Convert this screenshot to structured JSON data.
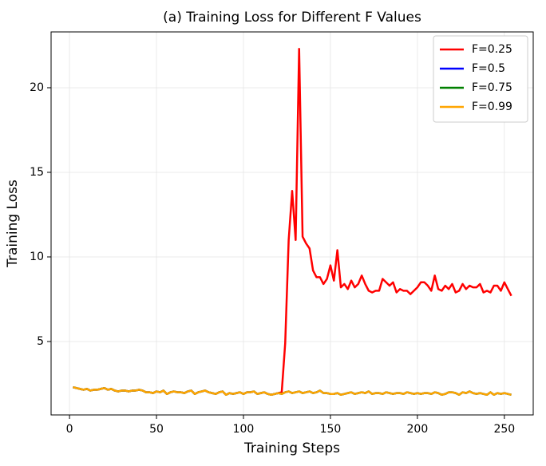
{
  "chart_data": {
    "type": "line",
    "title": "(a) Training Loss for Different F Values",
    "x_label": "Training Steps",
    "y_label": "Training Loss",
    "xlim": [
      -10.6,
      266.6
    ],
    "ylim": [
      0.66,
      23.3
    ],
    "xticks": [
      0,
      50,
      100,
      150,
      200,
      250
    ],
    "yticks": [
      5,
      10,
      15,
      20
    ],
    "grid": true,
    "legend": "upper right",
    "x": [
      2,
      4,
      6,
      8,
      10,
      12,
      14,
      16,
      18,
      20,
      22,
      24,
      26,
      28,
      30,
      32,
      34,
      36,
      38,
      40,
      42,
      44,
      46,
      48,
      50,
      52,
      54,
      56,
      58,
      60,
      62,
      64,
      66,
      68,
      70,
      72,
      74,
      76,
      78,
      80,
      82,
      84,
      86,
      88,
      90,
      92,
      94,
      96,
      98,
      100,
      102,
      104,
      106,
      108,
      110,
      112,
      114,
      116,
      118,
      120,
      122,
      124,
      126,
      128,
      130,
      132,
      134,
      136,
      138,
      140,
      142,
      144,
      146,
      148,
      150,
      152,
      154,
      156,
      158,
      160,
      162,
      164,
      166,
      168,
      170,
      172,
      174,
      176,
      178,
      180,
      182,
      184,
      186,
      188,
      190,
      192,
      194,
      196,
      198,
      200,
      202,
      204,
      206,
      208,
      210,
      212,
      214,
      216,
      218,
      220,
      222,
      224,
      226,
      228,
      230,
      232,
      234,
      236,
      238,
      240,
      242,
      244,
      246,
      248,
      250,
      252,
      254
    ],
    "series": [
      {
        "name": "F=0.25",
        "color": "#ff0000",
        "values": [
          2.3,
          2.25,
          2.2,
          2.15,
          2.2,
          2.1,
          2.15,
          2.15,
          2.2,
          2.25,
          2.15,
          2.2,
          2.1,
          2.05,
          2.1,
          2.1,
          2.05,
          2.1,
          2.1,
          2.15,
          2.1,
          2.0,
          2.0,
          1.95,
          2.05,
          2.0,
          2.1,
          1.9,
          2.0,
          2.05,
          2.0,
          2.0,
          1.95,
          2.05,
          2.1,
          1.9,
          2.0,
          2.05,
          2.1,
          2.0,
          1.95,
          1.9,
          2.0,
          2.05,
          1.85,
          1.95,
          1.9,
          1.95,
          2.0,
          1.9,
          2.0,
          2.0,
          2.05,
          1.9,
          1.95,
          2.0,
          1.9,
          1.85,
          1.9,
          1.95,
          2.0,
          4.9,
          11,
          13.9,
          11,
          22.3,
          11.2,
          10.8,
          10.5,
          9.2,
          8.8,
          8.8,
          8.4,
          8.7,
          9.5,
          8.6,
          10.4,
          8.2,
          8.4,
          8.1,
          8.6,
          8.2,
          8.4,
          8.9,
          8.4,
          8.0,
          7.9,
          8.0,
          8.0,
          8.7,
          8.5,
          8.3,
          8.5,
          7.9,
          8.1,
          8.0,
          8.0,
          7.8,
          8.0,
          8.2,
          8.5,
          8.5,
          8.3,
          8.0,
          8.9,
          8.1,
          8.0,
          8.3,
          8.1,
          8.4,
          7.9,
          8.0,
          8.4,
          8.1,
          8.3,
          8.2,
          8.2,
          8.4,
          7.9,
          8.0,
          7.9,
          8.3,
          8.3,
          8.0,
          8.5,
          8.1,
          7.7
        ]
      },
      {
        "name": "F=0.5",
        "color": "#0000ff",
        "values": [
          2.3,
          2.25,
          2.2,
          2.15,
          2.2,
          2.1,
          2.15,
          2.15,
          2.2,
          2.25,
          2.15,
          2.2,
          2.1,
          2.05,
          2.1,
          2.1,
          2.05,
          2.1,
          2.1,
          2.15,
          2.1,
          2.0,
          2.0,
          1.95,
          2.05,
          2.0,
          2.1,
          1.9,
          2.0,
          2.05,
          2.0,
          2.0,
          1.95,
          2.05,
          2.1,
          1.9,
          2.0,
          2.05,
          2.1,
          2.0,
          1.95,
          1.9,
          2.0,
          2.05,
          1.85,
          1.95,
          1.9,
          1.95,
          2.0,
          1.9,
          2.0,
          2.0,
          2.05,
          1.9,
          1.95,
          2.0,
          1.9,
          1.85,
          1.9,
          1.95,
          1.9,
          2.0,
          2.05,
          1.95,
          2.0,
          2.05,
          1.95,
          2.0,
          2.05,
          1.95,
          2.0,
          2.1,
          1.95,
          1.95,
          1.9,
          1.9,
          1.95,
          1.85,
          1.9,
          1.95,
          2.0,
          1.9,
          1.95,
          2.0,
          1.95,
          2.05,
          1.9,
          1.95,
          1.95,
          1.9,
          2.0,
          1.95,
          1.9,
          1.95,
          1.95,
          1.9,
          2.0,
          1.95,
          1.9,
          1.95,
          1.9,
          1.95,
          1.95,
          1.9,
          2.0,
          1.95,
          1.85,
          1.9,
          2.0,
          2.0,
          1.95,
          1.85,
          2.0,
          1.95,
          2.05,
          1.95,
          1.9,
          1.95,
          1.9,
          1.85,
          2.0,
          1.85,
          1.95,
          1.9,
          1.95,
          1.9,
          1.85
        ]
      },
      {
        "name": "F=0.75",
        "color": "#008000",
        "values": [
          2.3,
          2.25,
          2.2,
          2.15,
          2.2,
          2.1,
          2.15,
          2.15,
          2.2,
          2.25,
          2.15,
          2.2,
          2.1,
          2.05,
          2.1,
          2.1,
          2.05,
          2.1,
          2.1,
          2.15,
          2.1,
          2.0,
          2.0,
          1.95,
          2.05,
          2.0,
          2.1,
          1.9,
          2.0,
          2.05,
          2.0,
          2.0,
          1.95,
          2.05,
          2.1,
          1.9,
          2.0,
          2.05,
          2.1,
          2.0,
          1.95,
          1.9,
          2.0,
          2.05,
          1.85,
          1.95,
          1.9,
          1.95,
          2.0,
          1.9,
          2.0,
          2.0,
          2.05,
          1.9,
          1.95,
          2.0,
          1.9,
          1.85,
          1.9,
          1.95,
          1.9,
          2.0,
          2.05,
          1.95,
          2.0,
          2.05,
          1.95,
          2.0,
          2.05,
          1.95,
          2.0,
          2.1,
          1.95,
          1.95,
          1.9,
          1.9,
          1.95,
          1.85,
          1.9,
          1.95,
          2.0,
          1.9,
          1.95,
          2.0,
          1.95,
          2.05,
          1.9,
          1.95,
          1.95,
          1.9,
          2.0,
          1.95,
          1.9,
          1.95,
          1.95,
          1.9,
          2.0,
          1.95,
          1.9,
          1.95,
          1.9,
          1.95,
          1.95,
          1.9,
          2.0,
          1.95,
          1.85,
          1.9,
          2.0,
          2.0,
          1.95,
          1.85,
          2.0,
          1.95,
          2.05,
          1.95,
          1.9,
          1.95,
          1.9,
          1.85,
          2.0,
          1.85,
          1.95,
          1.9,
          1.95,
          1.9,
          1.85
        ]
      },
      {
        "name": "F=0.99",
        "color": "#ffa500",
        "values": [
          2.3,
          2.25,
          2.2,
          2.15,
          2.2,
          2.1,
          2.15,
          2.15,
          2.2,
          2.25,
          2.15,
          2.2,
          2.1,
          2.05,
          2.1,
          2.1,
          2.05,
          2.1,
          2.1,
          2.15,
          2.1,
          2.0,
          2.0,
          1.95,
          2.05,
          2.0,
          2.1,
          1.9,
          2.0,
          2.05,
          2.0,
          2.0,
          1.95,
          2.05,
          2.1,
          1.9,
          2.0,
          2.05,
          2.1,
          2.0,
          1.95,
          1.9,
          2.0,
          2.05,
          1.85,
          1.95,
          1.9,
          1.95,
          2.0,
          1.9,
          2.0,
          2.0,
          2.05,
          1.9,
          1.95,
          2.0,
          1.9,
          1.85,
          1.9,
          1.95,
          1.9,
          2.0,
          2.05,
          1.95,
          2.0,
          2.05,
          1.95,
          2.0,
          2.05,
          1.95,
          2.0,
          2.1,
          1.95,
          1.95,
          1.9,
          1.9,
          1.95,
          1.85,
          1.9,
          1.95,
          2.0,
          1.9,
          1.95,
          2.0,
          1.95,
          2.05,
          1.9,
          1.95,
          1.95,
          1.9,
          2.0,
          1.95,
          1.9,
          1.95,
          1.95,
          1.9,
          2.0,
          1.95,
          1.9,
          1.95,
          1.9,
          1.95,
          1.95,
          1.9,
          2.0,
          1.95,
          1.85,
          1.9,
          2.0,
          2.0,
          1.95,
          1.85,
          2.0,
          1.95,
          2.05,
          1.95,
          1.9,
          1.95,
          1.9,
          1.85,
          2.0,
          1.85,
          1.95,
          1.9,
          1.95,
          1.9,
          1.85
        ]
      }
    ]
  }
}
